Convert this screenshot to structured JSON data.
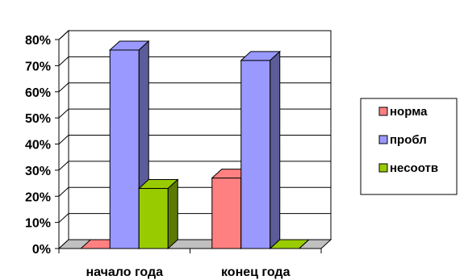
{
  "chart_data": {
    "type": "bar",
    "categories": [
      "начало года",
      "конец года"
    ],
    "series": [
      {
        "name": "норма",
        "values": [
          0,
          27
        ],
        "color": "#FF8080"
      },
      {
        "name": "пробл",
        "values": [
          76,
          72
        ],
        "color": "#9999FF"
      },
      {
        "name": "несоотв",
        "values": [
          23,
          0
        ],
        "color": "#99CC00"
      }
    ],
    "ylim": [
      0,
      80
    ],
    "yticks": [
      "0%",
      "10%",
      "20%",
      "30%",
      "40%",
      "50%",
      "60%",
      "70%",
      "80%"
    ],
    "grid": true,
    "legend": "right",
    "title": "",
    "xlabel": "",
    "ylabel": ""
  }
}
